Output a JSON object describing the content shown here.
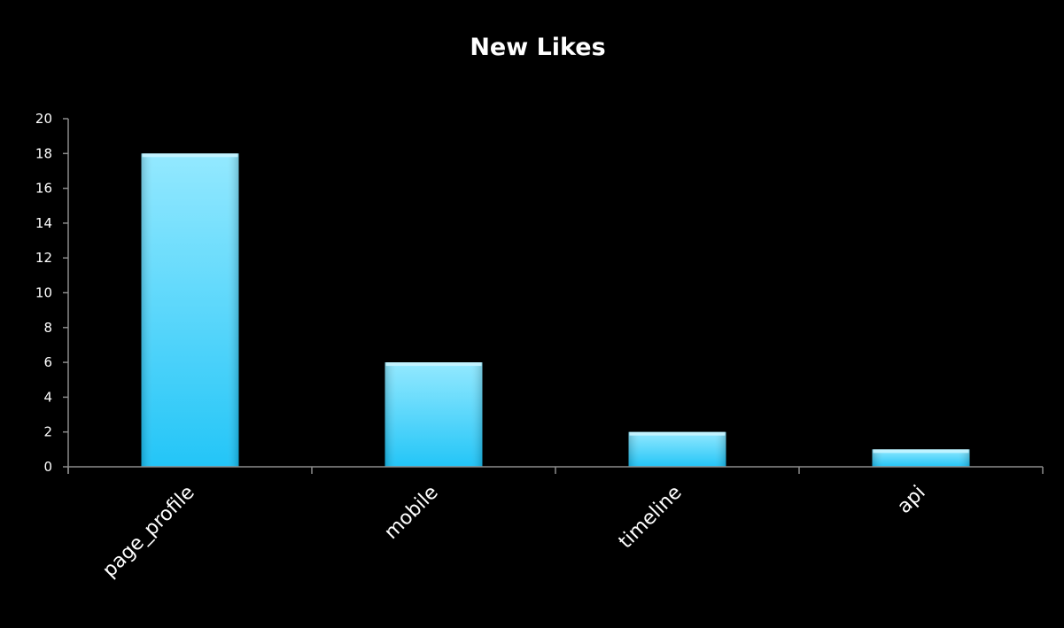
{
  "chart_data": {
    "type": "bar",
    "title": "New Likes",
    "xlabel": "",
    "ylabel": "",
    "categories": [
      "page_profile",
      "mobile",
      "timeline",
      "api"
    ],
    "values": [
      18,
      6,
      2,
      1
    ],
    "ylim": [
      0,
      20
    ],
    "yticks": [
      "0",
      "2",
      "4",
      "6",
      "8",
      "10",
      "12",
      "14",
      "16",
      "18",
      "20"
    ],
    "grid": false,
    "legend": "none",
    "colors": {
      "background": "#000000",
      "axis": "#8c8c8c",
      "text": "#ffffff",
      "bar_top": "#8ee8ff",
      "bar_bottom": "#18c2f7",
      "bar_cap": "#c8f4ff"
    }
  }
}
